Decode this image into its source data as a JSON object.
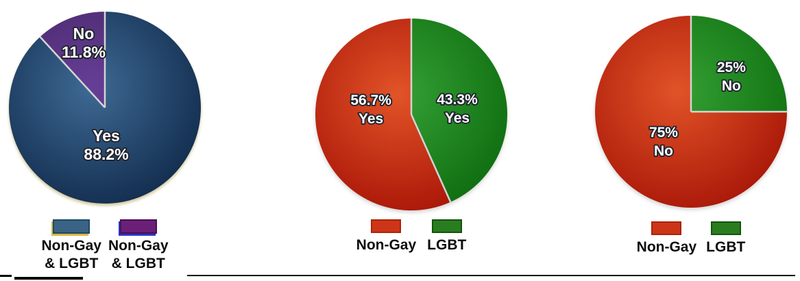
{
  "canvas": {
    "background": "#ffffff"
  },
  "chart_data": [
    {
      "type": "pie",
      "title": "",
      "units": "%",
      "start_angle_deg": 0,
      "legend_position": "bottom",
      "slices": [
        {
          "name": "Yes",
          "label_lines": [
            "Yes",
            "88.2%"
          ],
          "value_pct": 88.2,
          "color_center": "#3e6a94",
          "color_edge": "#122c4e",
          "label_x": 0.507,
          "label_y": 0.686
        },
        {
          "name": "No",
          "label_lines": [
            "No",
            "11.8%"
          ],
          "value_pct": 11.8,
          "color_center": "#653f97",
          "color_edge": "#472465",
          "label_x": 0.393,
          "label_y": 0.172
        }
      ],
      "legend": [
        {
          "label_lines": [
            "Non-Gay",
            "& LGBT"
          ],
          "swatch_color": "#3a6386",
          "swatch_border": "#1c4a66",
          "swatch_accent": "#d9b83f"
        },
        {
          "label_lines": [
            "Non-Gay",
            "& LGBT"
          ],
          "swatch_color": "#6b2077",
          "swatch_border": "#471055",
          "swatch_accent": "#2b35c5"
        }
      ]
    },
    {
      "type": "pie",
      "title": "",
      "units": "%",
      "start_angle_deg": 0,
      "legend_position": "bottom",
      "slices": [
        {
          "name": "LGBT — Yes",
          "label_lines": [
            "43.3%",
            "Yes"
          ],
          "value_pct": 43.3,
          "color_center": "#35a135",
          "color_edge": "#0f6d10",
          "label_x": 0.731,
          "label_y": 0.466
        },
        {
          "name": "Non-Gay — Yes",
          "label_lines": [
            "56.7%",
            "Yes"
          ],
          "value_pct": 56.7,
          "color_center": "#e25428",
          "color_edge": "#a81507",
          "label_x": 0.297,
          "label_y": 0.469
        }
      ],
      "legend": [
        {
          "label_lines": [
            "Non-Gay"
          ],
          "swatch_color": "#cd3518",
          "swatch_border": "#a82408"
        },
        {
          "label_lines": [
            "LGBT"
          ],
          "swatch_color": "#2a7d1f",
          "swatch_border": "#15520e"
        }
      ]
    },
    {
      "type": "pie",
      "title": "",
      "units": "%",
      "start_angle_deg": 0,
      "legend_position": "bottom",
      "slices": [
        {
          "name": "LGBT — No",
          "label_lines": [
            "25%",
            "No"
          ],
          "value_pct": 25,
          "color_center": "#34a033",
          "color_edge": "#107011",
          "label_x": 0.703,
          "label_y": 0.317
        },
        {
          "name": "Non-Gay — No",
          "label_lines": [
            "75%",
            "No"
          ],
          "value_pct": 75,
          "color_center": "#e15327",
          "color_edge": "#a91708",
          "label_x": 0.362,
          "label_y": 0.645
        }
      ],
      "legend": [
        {
          "label_lines": [
            "Non-Gay"
          ],
          "swatch_color": "#cd3518",
          "swatch_border": "#a82408"
        },
        {
          "label_lines": [
            "LGBT"
          ],
          "swatch_color": "#2a7d1f",
          "swatch_border": "#15520e"
        }
      ]
    }
  ],
  "style": {
    "slice_separator_color": "#d4d4d4",
    "slice_label_color": "#ffffff",
    "legend_text_color": "#0d0d0d",
    "bottom_rule_color": "#000000"
  }
}
